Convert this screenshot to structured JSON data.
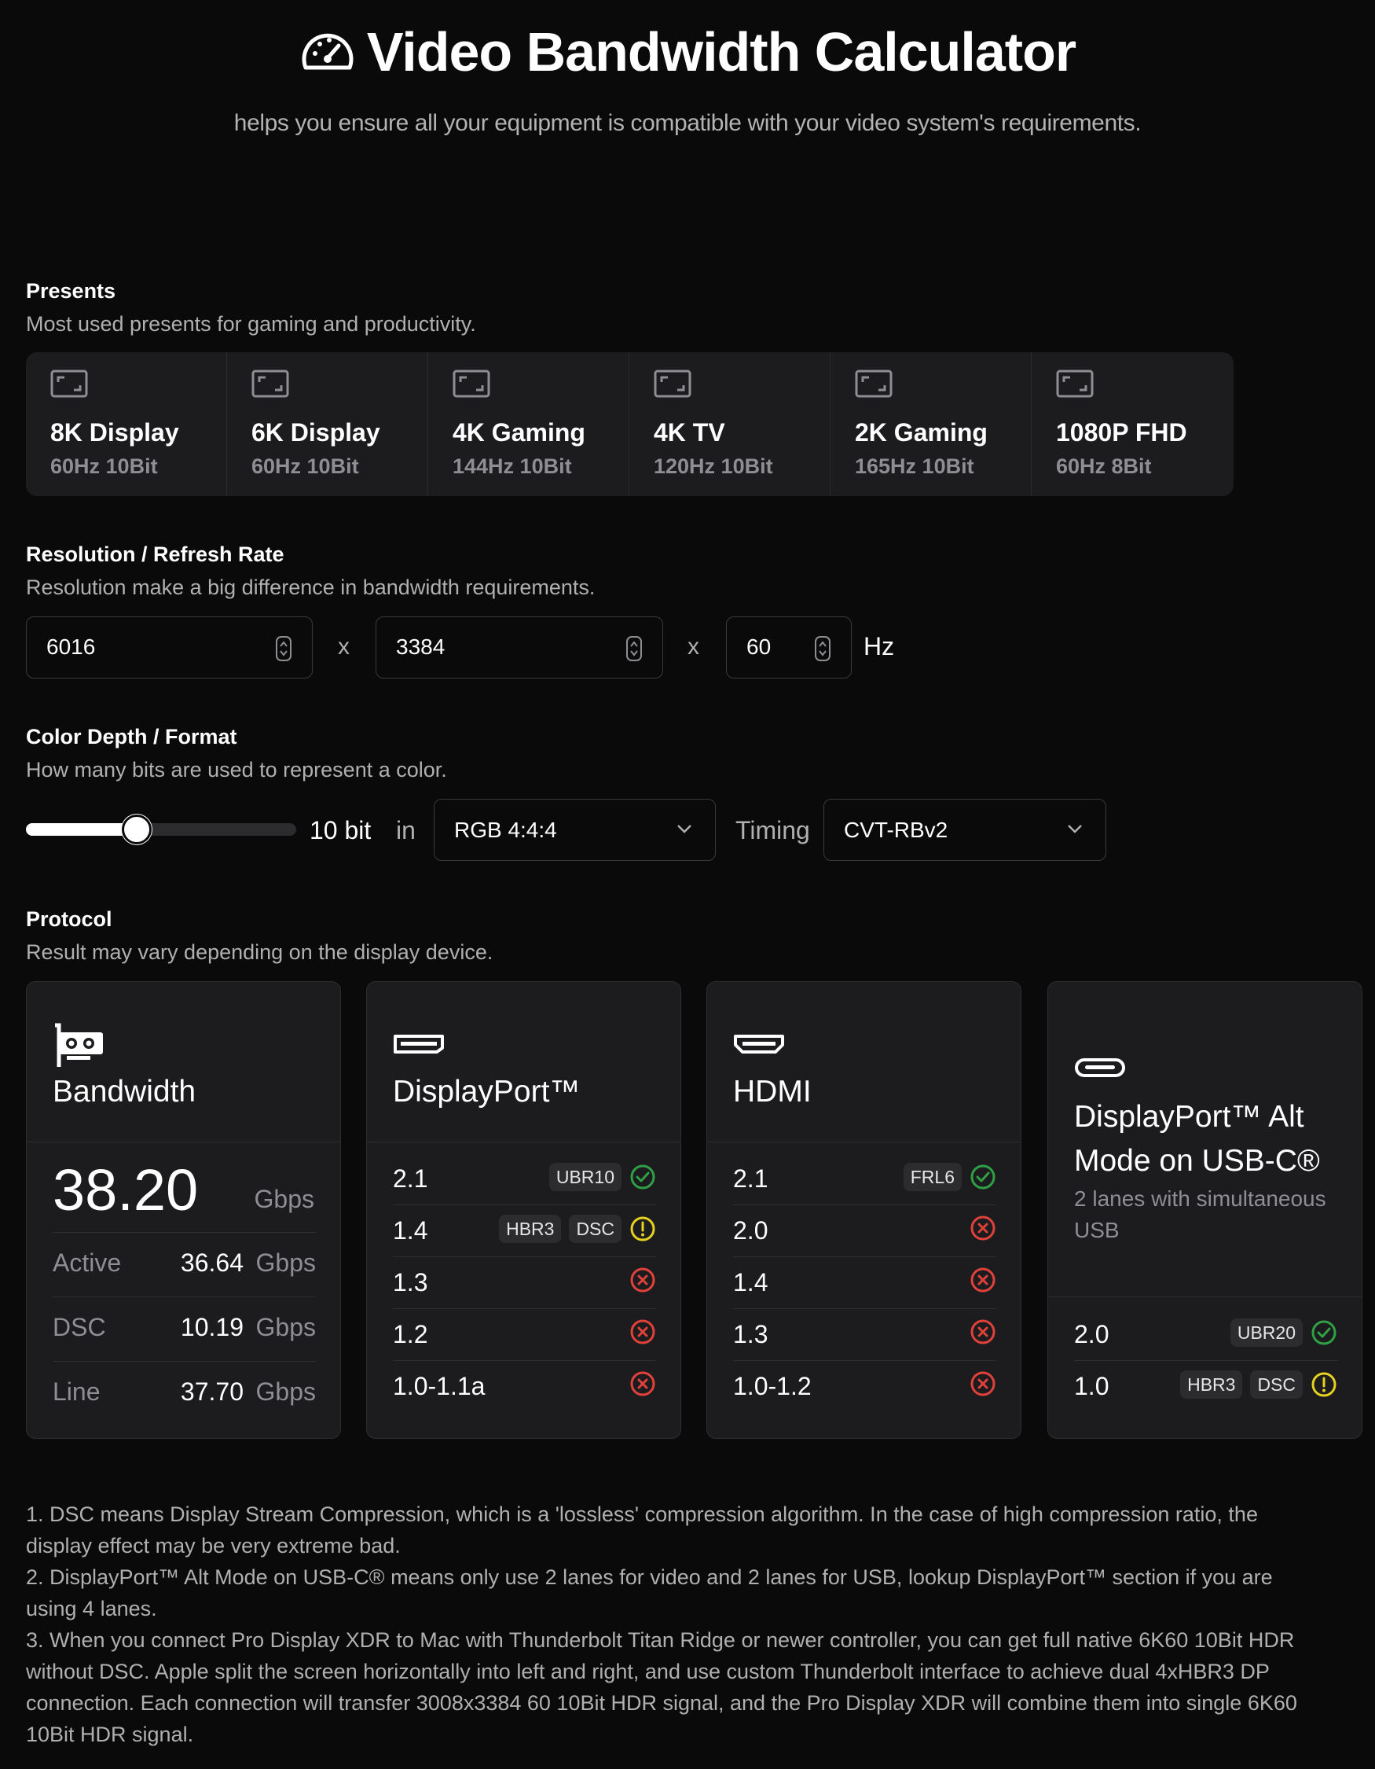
{
  "header": {
    "title": "Video Bandwidth Calculator",
    "subtitle": "helps you ensure all your equipment is compatible with your video system's requirements.",
    "icon": "speedometer-icon"
  },
  "presets": {
    "title": "Presents",
    "description": "Most used presents for gaming and productivity.",
    "items": [
      {
        "name": "8K Display",
        "spec": "60Hz 10Bit"
      },
      {
        "name": "6K Display",
        "spec": "60Hz 10Bit"
      },
      {
        "name": "4K Gaming",
        "spec": "144Hz 10Bit"
      },
      {
        "name": "4K TV",
        "spec": "120Hz 10Bit"
      },
      {
        "name": "2K Gaming",
        "spec": "165Hz 10Bit"
      },
      {
        "name": "1080P FHD",
        "spec": "60Hz 8Bit"
      }
    ]
  },
  "resolution": {
    "title": "Resolution / Refresh Rate",
    "description": "Resolution make a big difference in bandwidth requirements.",
    "width": "6016",
    "height": "3384",
    "refresh": "60",
    "separator": "x",
    "unit": "Hz"
  },
  "color": {
    "title": "Color Depth / Format",
    "description": "How many bits are used to represent a color.",
    "bit_depth_label": "10 bit",
    "slider_level": 0.42,
    "in_label": "in",
    "format": "RGB 4:4:4",
    "timing_label": "Timing",
    "timing": "CVT-RBv2"
  },
  "protocol": {
    "title": "Protocol",
    "description": "Result may vary depending on the display device.",
    "bandwidth": {
      "title": "Bandwidth",
      "total": "38.20",
      "total_unit": "Gbps",
      "rows": [
        {
          "label": "Active",
          "value": "36.64",
          "unit": "Gbps"
        },
        {
          "label": "DSC",
          "value": "10.19",
          "unit": "Gbps"
        },
        {
          "label": "Line",
          "value": "37.70",
          "unit": "Gbps"
        }
      ]
    },
    "displayport": {
      "title": "DisplayPort™",
      "rows": [
        {
          "version": "2.1",
          "badges": [
            "UBR10"
          ],
          "status": "ok"
        },
        {
          "version": "1.4",
          "badges": [
            "HBR3",
            "DSC"
          ],
          "status": "warn"
        },
        {
          "version": "1.3",
          "badges": [],
          "status": "fail"
        },
        {
          "version": "1.2",
          "badges": [],
          "status": "fail"
        },
        {
          "version": "1.0-1.1a",
          "badges": [],
          "status": "fail"
        }
      ]
    },
    "hdmi": {
      "title": "HDMI",
      "rows": [
        {
          "version": "2.1",
          "badges": [
            "FRL6"
          ],
          "status": "ok"
        },
        {
          "version": "2.0",
          "badges": [],
          "status": "fail"
        },
        {
          "version": "1.4",
          "badges": [],
          "status": "fail"
        },
        {
          "version": "1.3",
          "badges": [],
          "status": "fail"
        },
        {
          "version": "1.0-1.2",
          "badges": [],
          "status": "fail"
        }
      ]
    },
    "usbc": {
      "title_line1": "DisplayPort™ Alt",
      "title_line2": "Mode on USB-C®",
      "subtitle_line1": "2 lanes with simultaneous",
      "subtitle_line2": "USB",
      "rows": [
        {
          "version": "2.0",
          "badges": [
            "UBR20"
          ],
          "status": "ok"
        },
        {
          "version": "1.0",
          "badges": [
            "HBR3",
            "DSC"
          ],
          "status": "warn"
        }
      ]
    }
  },
  "colors": {
    "ok": "#30a046",
    "warn": "#e6d21e",
    "fail": "#e0413a",
    "card_bg": "#1c1c1e",
    "page_bg": "#0a0a0b"
  },
  "notes": {
    "n1_a": "1. DSC means Display Stream Compression, which is a 'lossless' compression algorithm. In the case of high compression ratio, the",
    "n1_b": "display effect may be very extreme bad.",
    "n2_a": "2. DisplayPort™ Alt Mode on USB-C® means only use 2 lanes for video and 2 lanes for USB, lookup DisplayPort™ section if you are",
    "n2_b": "using 4 lanes.",
    "n3_a": "3. When you connect Pro Display XDR to Mac with Thunderbolt Titan Ridge or newer controller, you can get full native 6K60 10Bit HDR",
    "n3_b": "without DSC. Apple split the screen horizontally into left and right, and use custom Thunderbolt interface to achieve dual 4xHBR3 DP",
    "n3_c": "connection. Each connection will transfer 3008x3384 60 10Bit HDR signal, and the Pro Display XDR will combine them into single 6K60",
    "n3_d": "10Bit HDR signal."
  }
}
